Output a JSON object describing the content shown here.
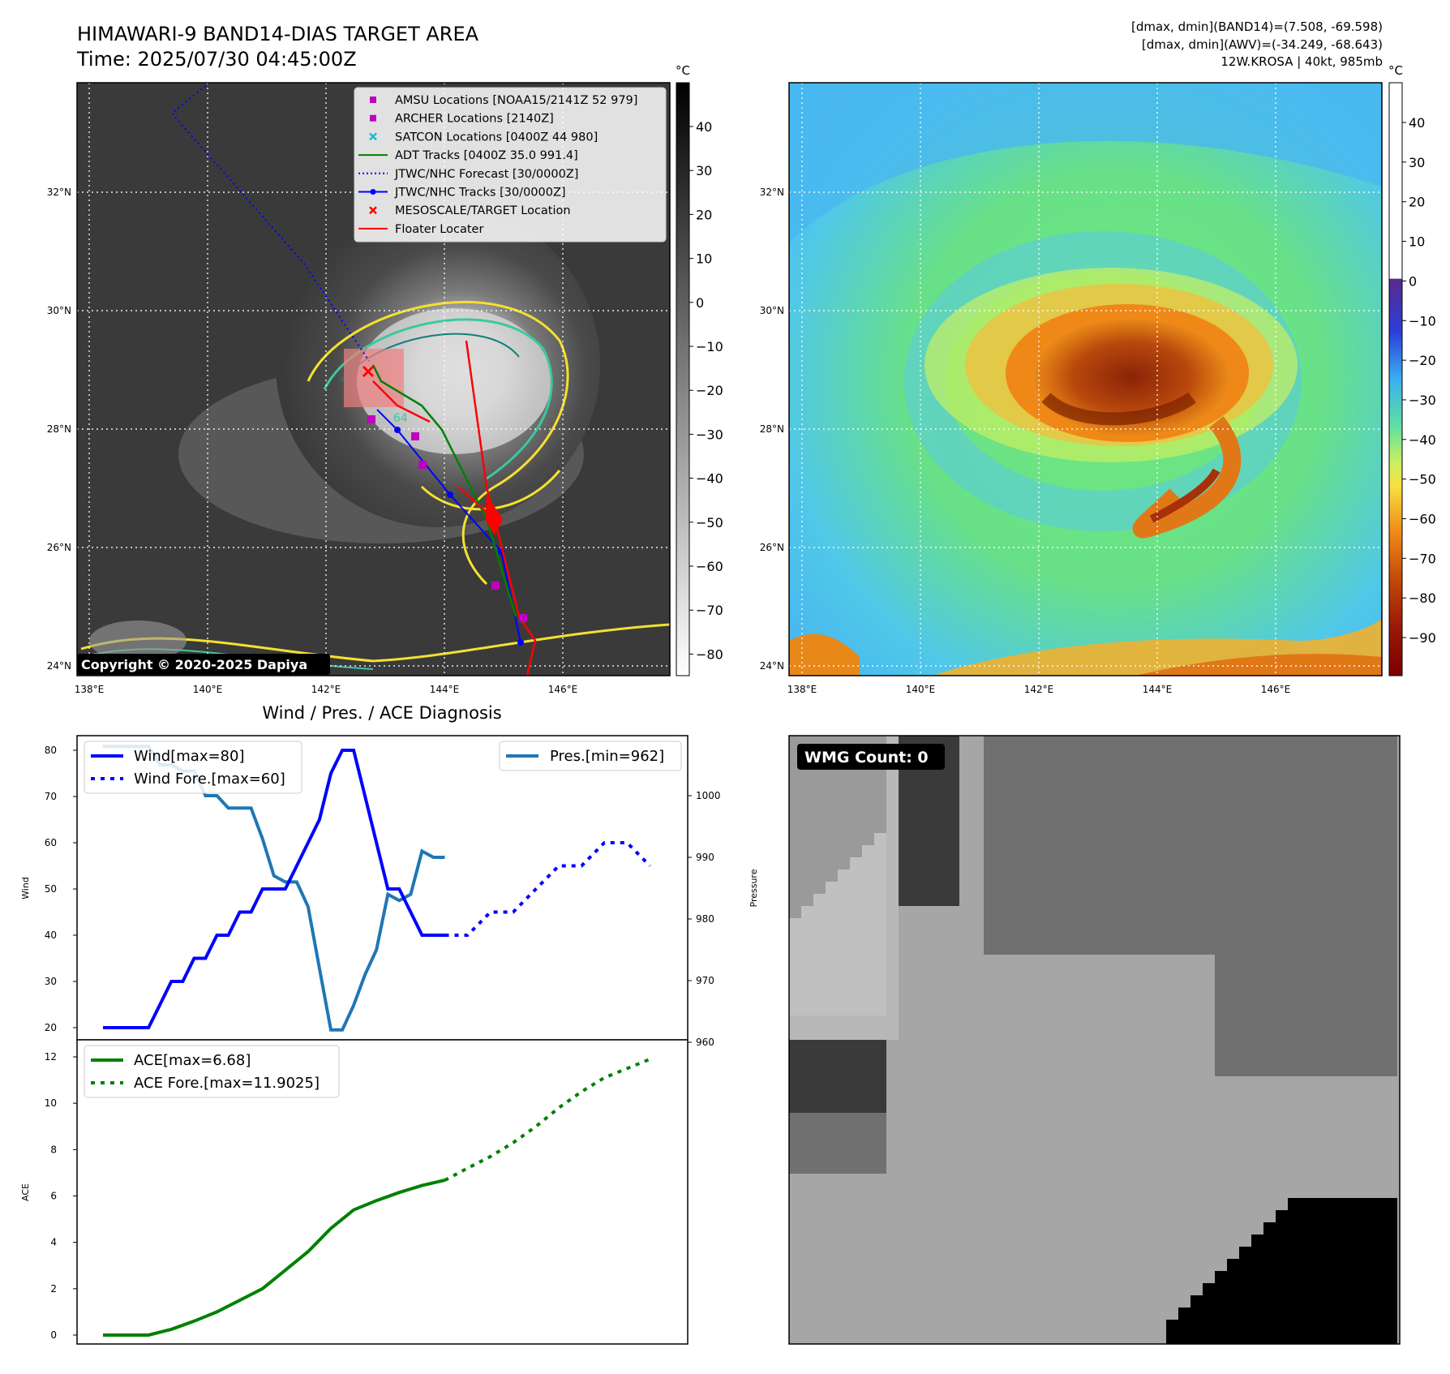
{
  "header": {
    "title": "HIMAWARI-9 BAND14-DIAS TARGET AREA",
    "time": "Time: 2025/07/30 04:45:00Z",
    "info1": "[dmax, dmin](BAND14)=(7.508, -69.598)",
    "info2": "[dmax, dmin](AWV)=(-34.249, -68.643)",
    "info3": "12W.KROSA | 40kt, 985mb"
  },
  "map": {
    "lat_labels": [
      "32°N",
      "30°N",
      "28°N",
      "26°N",
      "24°N"
    ],
    "lon_labels": [
      "138°E",
      "140°E",
      "142°E",
      "144°E",
      "146°E"
    ],
    "copyright": "Copyright © 2020-2025 Dapiya",
    "label_64": "64",
    "legend": [
      {
        "label": "AMSU Locations [NOAA15/2141Z 52 979]",
        "marker": "square",
        "color": "#bf00bf"
      },
      {
        "label": "ARCHER Locations [2140Z]",
        "marker": "square",
        "color": "#bf00bf"
      },
      {
        "label": "SATCON Locations [0400Z 44 980]",
        "marker": "x",
        "color": "#17becf"
      },
      {
        "label": "ADT Tracks [0400Z 35.0 991.4]",
        "marker": "line",
        "color": "#008000"
      },
      {
        "label": "JTWC/NHC Forecast [30/0000Z]",
        "marker": "dotted",
        "color": "#0000ff"
      },
      {
        "label": "JTWC/NHC Tracks [30/0000Z]",
        "marker": "line-dot",
        "color": "#0000ff"
      },
      {
        "label": "MESOSCALE/TARGET Location",
        "marker": "x",
        "color": "#ff0000"
      },
      {
        "label": "Floater Locater",
        "marker": "line",
        "color": "#ff0000"
      }
    ]
  },
  "colorbar_gray": {
    "unit": "°C",
    "ticks": [
      "40",
      "30",
      "20",
      "10",
      "0",
      "−10",
      "−20",
      "−30",
      "−40",
      "−50",
      "−60",
      "−70",
      "−80"
    ]
  },
  "colorbar_color": {
    "unit": "°C",
    "ticks": [
      "40",
      "30",
      "20",
      "10",
      "0",
      "−10",
      "−20",
      "−30",
      "−40",
      "−50",
      "−60",
      "−70",
      "−80",
      "−90"
    ]
  },
  "diagnosis": {
    "title": "Wind / Pres. / ACE Diagnosis",
    "wind_axis_label": "Wind",
    "pressure_axis_label": "Pressure",
    "ace_axis_label": "ACE",
    "wind_ticks": [
      "80",
      "70",
      "60",
      "50",
      "40",
      "30",
      "20"
    ],
    "pressure_ticks": [
      "1000",
      "990",
      "980",
      "970",
      "960"
    ],
    "ace_ticks": [
      "12",
      "10",
      "8",
      "6",
      "4",
      "2",
      "0"
    ],
    "legend_wind": "Wind[max=80]",
    "legend_wind_fore": "Wind Fore.[max=60]",
    "legend_pres": "Pres.[min=962]",
    "legend_ace": "ACE[max=6.68]",
    "legend_ace_fore": "ACE Fore.[max=11.9025]"
  },
  "wmg": {
    "label": "WMG Count: 0"
  },
  "chart_data": [
    {
      "type": "line",
      "title": "Wind / Pres. / ACE Diagnosis",
      "ylabel": "Wind",
      "ylim": [
        18,
        83
      ],
      "series": [
        {
          "name": "Wind[max=80]",
          "x": [
            0,
            1,
            2,
            3,
            4,
            5,
            6,
            7,
            8,
            9,
            10,
            11,
            12,
            13,
            14,
            15,
            16,
            17,
            18,
            19,
            20,
            21,
            22,
            23,
            24,
            25,
            26,
            27,
            28,
            29,
            30,
            31,
            32,
            33,
            34,
            35,
            36,
            37,
            38,
            39,
            40,
            41,
            42,
            43,
            44,
            45,
            46,
            47,
            48
          ],
          "values": [
            20,
            20,
            20,
            20,
            20,
            25,
            30,
            30,
            35,
            35,
            40,
            40,
            45,
            45,
            50,
            50,
            50,
            55,
            60,
            65,
            75,
            80,
            80,
            70,
            60,
            50,
            50,
            45,
            40,
            40,
            40,
            null,
            null,
            null,
            null,
            null,
            null,
            null,
            null,
            null,
            null,
            null,
            null,
            null,
            null,
            null,
            null,
            null,
            null
          ]
        },
        {
          "name": "Wind Fore.[max=60]",
          "x": [
            30,
            32,
            34,
            36,
            38,
            40,
            42,
            44,
            46,
            48
          ],
          "values": [
            40,
            40,
            45,
            45,
            50,
            55,
            55,
            60,
            60,
            55
          ]
        }
      ]
    },
    {
      "type": "line",
      "ylabel": "Pressure",
      "ylim": [
        960,
        1008
      ],
      "series": [
        {
          "name": "Pres.[min=962]",
          "x": [
            0,
            1,
            2,
            3,
            4,
            5,
            6,
            7,
            8,
            9,
            10,
            11,
            12,
            13,
            14,
            15,
            16,
            17,
            18,
            19,
            20,
            21,
            22,
            23,
            24,
            25,
            26,
            27,
            28,
            29,
            30
          ],
          "values": [
            1008,
            1008,
            1008,
            1008,
            1008,
            1005,
            1005,
            1004,
            1004,
            1000,
            1000,
            998,
            998,
            998,
            993,
            987,
            986,
            986,
            982,
            972,
            962,
            962,
            966,
            971,
            975,
            984,
            983,
            984,
            991,
            990,
            990
          ]
        }
      ]
    },
    {
      "type": "line",
      "ylabel": "ACE",
      "ylim": [
        0,
        12.5
      ],
      "series": [
        {
          "name": "ACE[max=6.68]",
          "x": [
            0,
            2,
            4,
            6,
            8,
            10,
            12,
            14,
            16,
            18,
            20,
            22,
            24,
            26,
            28,
            30
          ],
          "values": [
            0,
            0,
            0,
            0.25,
            0.6,
            1.0,
            1.5,
            2.0,
            2.8,
            3.6,
            4.6,
            5.4,
            5.8,
            6.15,
            6.45,
            6.68
          ]
        },
        {
          "name": "ACE Fore.[max=11.9025]",
          "x": [
            30,
            32,
            34,
            36,
            38,
            40,
            42,
            44,
            46,
            48
          ],
          "values": [
            6.68,
            7.2,
            7.7,
            8.3,
            9.0,
            9.8,
            10.5,
            11.1,
            11.5,
            11.9
          ]
        }
      ]
    }
  ]
}
